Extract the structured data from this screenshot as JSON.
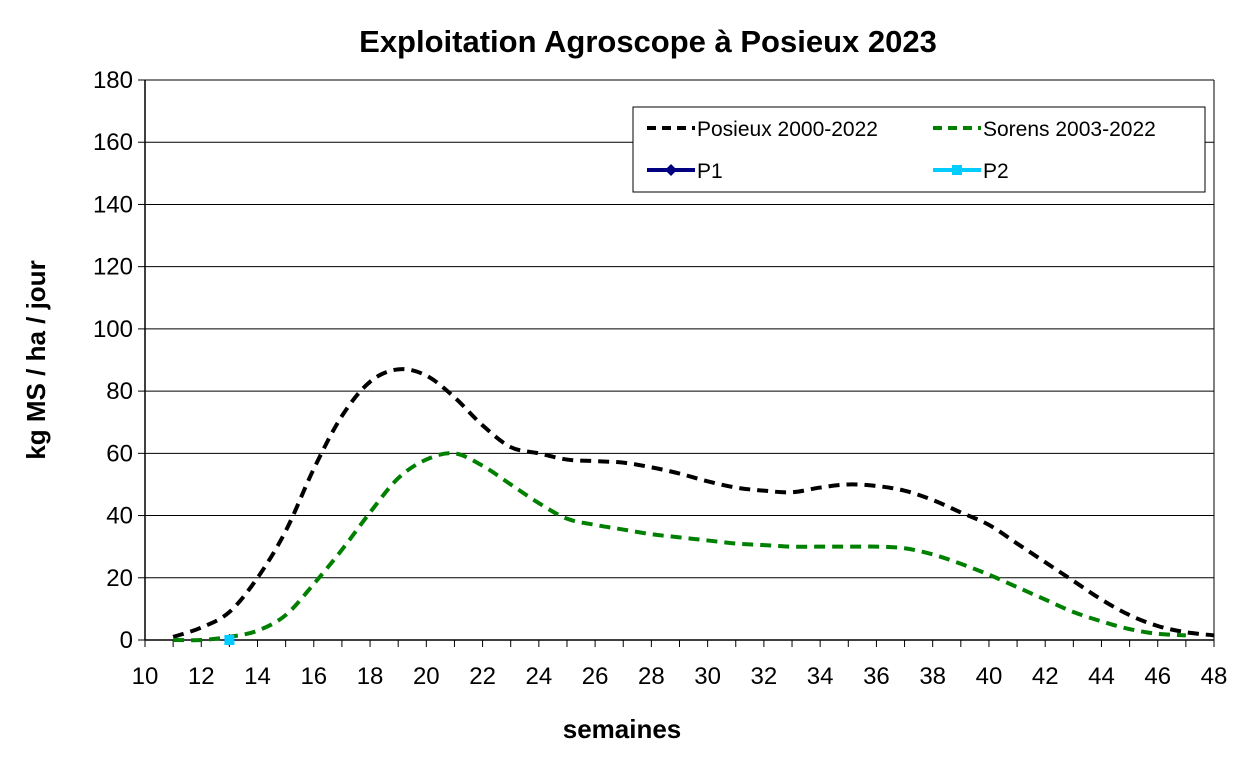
{
  "chart_data": {
    "type": "line",
    "title": "Exploitation Agroscope à Posieux 2023",
    "xlabel": "semaines",
    "ylabel": "kg MS / ha / jour",
    "xlim": [
      10,
      48
    ],
    "ylim": [
      0,
      180
    ],
    "xticks": [
      10,
      12,
      14,
      16,
      18,
      20,
      22,
      24,
      26,
      28,
      30,
      32,
      34,
      36,
      38,
      40,
      42,
      44,
      46,
      48
    ],
    "yticks": [
      0,
      20,
      40,
      60,
      80,
      100,
      120,
      140,
      160,
      180
    ],
    "grid": "horizontal",
    "legend_position": "top-right",
    "series": [
      {
        "name": "Posieux 2000-2022",
        "color": "#000000",
        "style": "dashed",
        "x": [
          11,
          12,
          13,
          14,
          15,
          16,
          17,
          18,
          19,
          20,
          21,
          22,
          23,
          24,
          25,
          26,
          27,
          28,
          29,
          30,
          31,
          32,
          33,
          34,
          35,
          36,
          37,
          38,
          39,
          40,
          41,
          42,
          43,
          44,
          45,
          46,
          47,
          48
        ],
        "y": [
          1,
          4,
          9,
          20,
          35,
          55,
          72,
          83,
          87,
          85,
          78,
          69,
          62,
          60,
          58,
          57.5,
          57,
          55.5,
          53.5,
          51,
          49,
          48,
          47.5,
          49,
          50,
          49.5,
          48,
          45,
          41,
          37,
          31,
          25,
          19,
          13,
          8,
          4.5,
          2.5,
          1.5
        ]
      },
      {
        "name": "Sorens 2003-2022",
        "color": "#008000",
        "style": "dashed",
        "x": [
          11,
          12,
          13,
          14,
          15,
          16,
          17,
          18,
          19,
          20,
          21,
          22,
          23,
          24,
          25,
          26,
          27,
          28,
          29,
          30,
          31,
          32,
          33,
          34,
          35,
          36,
          37,
          38,
          39,
          40,
          41,
          42,
          43,
          44,
          45,
          46,
          47
        ],
        "y": [
          0,
          0,
          1,
          3,
          8,
          18,
          29,
          41,
          52,
          58,
          60,
          56,
          50,
          44,
          39,
          37,
          35.5,
          34,
          33,
          32,
          31,
          30.5,
          30,
          30,
          30,
          30,
          29.5,
          27.5,
          24.5,
          21,
          17,
          13,
          9,
          6,
          3.5,
          2,
          1.5
        ]
      },
      {
        "name": "P1",
        "color": "#000080",
        "style": "solid",
        "marker": "diamond",
        "x": [
          13
        ],
        "y": [
          0
        ]
      },
      {
        "name": "P2",
        "color": "#00CCFF",
        "style": "solid",
        "marker": "square",
        "x": [
          13
        ],
        "y": [
          0
        ]
      }
    ]
  }
}
